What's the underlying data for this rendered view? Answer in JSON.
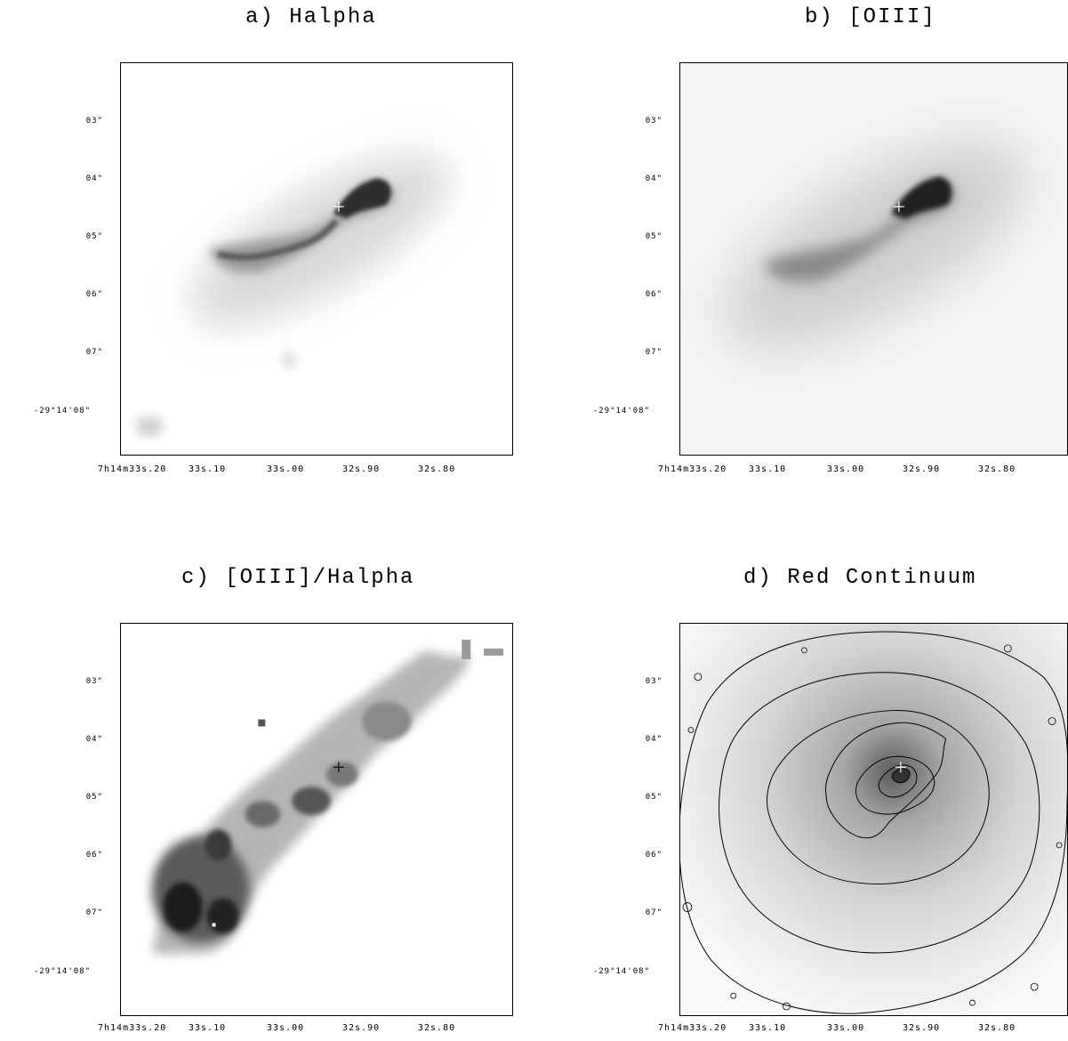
{
  "panels": [
    {
      "title": "a) Halpha",
      "ra_ticks": [
        "7h14m33s.20",
        "33s.10",
        "33s.00",
        "32s.90",
        "32s.80"
      ],
      "dec_ticks": [
        "03\"",
        "04\"",
        "05\"",
        "06\"",
        "07\"",
        "-29°14'08\""
      ]
    },
    {
      "title": "b) [OIII]",
      "ra_ticks": [
        "7h14m33s.20",
        "33s.10",
        "33s.00",
        "32s.90",
        "32s.80"
      ],
      "dec_ticks": [
        "03\"",
        "04\"",
        "05\"",
        "06\"",
        "07\"",
        "-29°14'08\""
      ]
    },
    {
      "title": "c) [OIII]/Halpha",
      "ra_ticks": [
        "7h14m33s.20",
        "33s.10",
        "33s.00",
        "32s.90",
        "32s.80"
      ],
      "dec_ticks": [
        "03\"",
        "04\"",
        "05\"",
        "06\"",
        "07\"",
        "-29°14'08\""
      ]
    },
    {
      "title": "d) Red Continuum",
      "ra_ticks": [
        "7h14m33s.20",
        "33s.10",
        "33s.00",
        "32s.90",
        "32s.80"
      ],
      "dec_ticks": [
        "03\"",
        "04\"",
        "05\"",
        "06\"",
        "07\"",
        "-29°14'08\""
      ]
    }
  ]
}
